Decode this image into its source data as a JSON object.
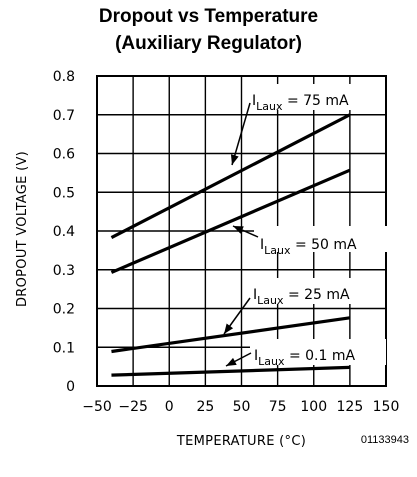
{
  "chart_data": {
    "type": "line",
    "title": "Dropout vs Temperature",
    "subtitle": "(Auxiliary Regulator)",
    "xlabel": "TEMPERATURE (°C)",
    "ylabel": "DROPOUT VOLTAGE (V)",
    "xlim": [
      -50,
      150
    ],
    "ylim": [
      0,
      0.8
    ],
    "x_ticks": [
      -50,
      -25,
      0,
      25,
      50,
      75,
      100,
      125,
      150
    ],
    "x_tick_labels": [
      "−50",
      "−25",
      "0",
      "25",
      "50",
      "75",
      "100",
      "125",
      "150"
    ],
    "y_ticks": [
      0,
      0.1,
      0.2,
      0.3,
      0.4,
      0.5,
      0.6,
      0.7,
      0.8
    ],
    "y_tick_labels": [
      "0",
      "0.1",
      "0.2",
      "0.3",
      "0.4",
      "0.5",
      "0.6",
      "0.7",
      "0.8"
    ],
    "grid": true,
    "series": [
      {
        "name": "I_Laux = 75 mA",
        "x": [
          -40,
          125
        ],
        "values": [
          0.383,
          0.7
        ],
        "label": {
          "main": "I",
          "sub": "Laux",
          "rest": " = 75 mA"
        }
      },
      {
        "name": "I_Laux = 50 mA",
        "x": [
          -40,
          125
        ],
        "values": [
          0.293,
          0.557
        ],
        "label": {
          "main": "I",
          "sub": "Laux",
          "rest": " = 50 mA"
        }
      },
      {
        "name": "I_Laux = 25 mA",
        "x": [
          -40,
          125
        ],
        "values": [
          0.089,
          0.176
        ],
        "label": {
          "main": "I",
          "sub": "Laux",
          "rest": " = 25 mA"
        }
      },
      {
        "name": "I_Laux = 0.1 mA",
        "x": [
          -40,
          125
        ],
        "values": [
          0.028,
          0.048
        ],
        "label": {
          "main": "I",
          "sub": "Laux",
          "rest": " = 0.1 mA"
        }
      }
    ]
  },
  "figure_id": "01133943"
}
